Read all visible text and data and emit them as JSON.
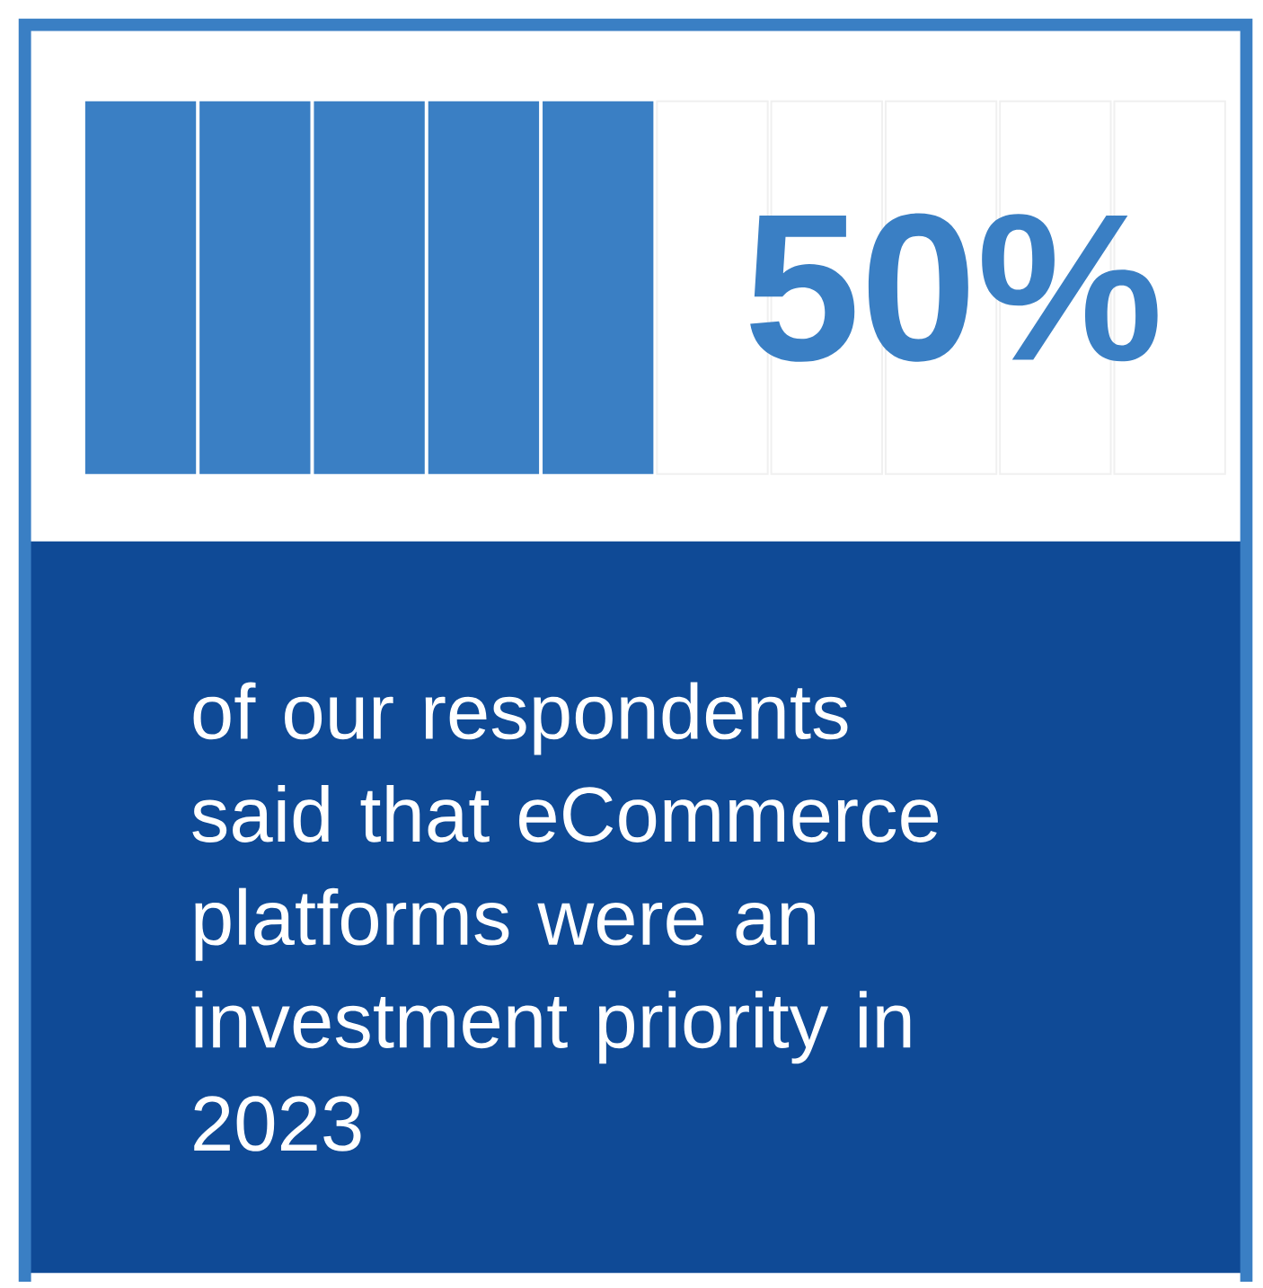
{
  "chart_data": {
    "type": "other",
    "values": [
      50
    ],
    "value_labels": [
      "50%"
    ],
    "color": "#3a7fc4",
    "annotations": [
      "of our respondents said that eCommerce platforms were an investment priority in 2023"
    ]
  }
}
